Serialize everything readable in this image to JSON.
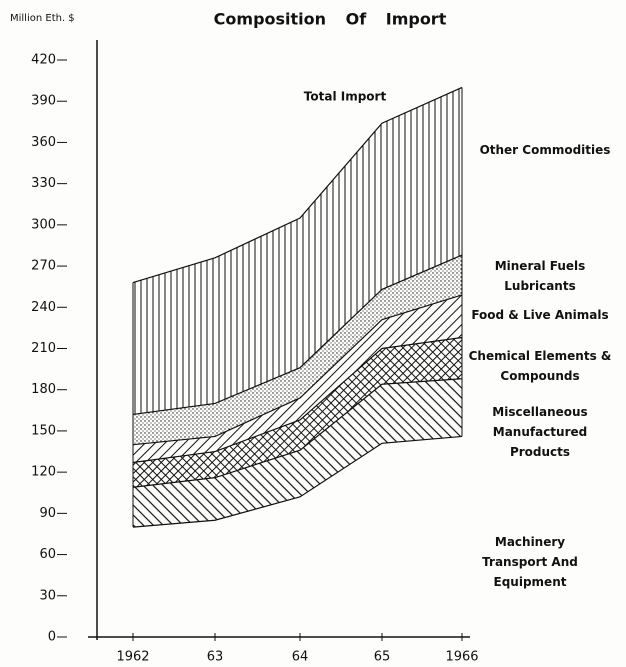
{
  "chart_data": {
    "type": "stacked_area",
    "title": "Composition Of Import",
    "y_axis_label": "Million Eth. $",
    "annotation": "Total Import",
    "categories": [
      "1962",
      "63",
      "64",
      "65",
      "1966"
    ],
    "ylim": [
      0,
      420
    ],
    "yticks": [
      0,
      30,
      60,
      90,
      120,
      150,
      180,
      210,
      240,
      270,
      300,
      330,
      360,
      390,
      420
    ],
    "series": [
      {
        "name": "Machinery Transport And Equipment",
        "color": "#111111",
        "pattern": "none",
        "values": [
          80,
          85,
          102,
          141,
          146
        ]
      },
      {
        "name": "Miscellaneous Manufactured Products",
        "color": "#111111",
        "pattern": "backslash",
        "values": [
          29,
          31,
          34,
          43,
          42
        ]
      },
      {
        "name": "Chemical Elements & Compounds",
        "color": "#111111",
        "pattern": "crosshatch",
        "values": [
          18,
          19,
          22,
          26,
          30
        ]
      },
      {
        "name": "Food & Live Animals",
        "color": "#111111",
        "pattern": "slash",
        "values": [
          13,
          11,
          16,
          21,
          31
        ]
      },
      {
        "name": "Mineral Fuels Lubricants",
        "color": "#111111",
        "pattern": "dots",
        "values": [
          22,
          24,
          22,
          22,
          29
        ]
      },
      {
        "name": "Other Commodities",
        "color": "#111111",
        "pattern": "vertical",
        "values": [
          96,
          106,
          109,
          121,
          122
        ]
      }
    ]
  }
}
